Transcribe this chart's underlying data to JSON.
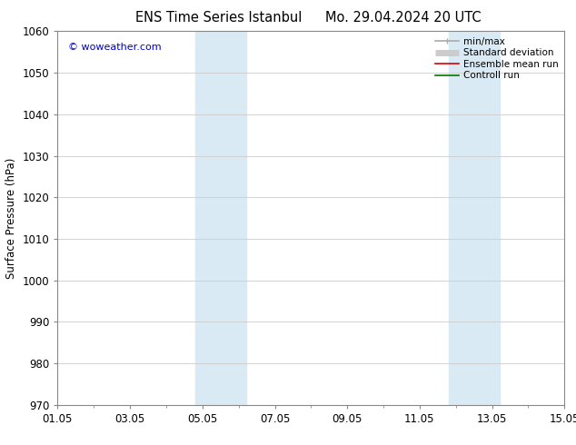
{
  "title_left": "ENS Time Series Istanbul",
  "title_right": "Mo. 29.04.2024 20 UTC",
  "ylabel": "Surface Pressure (hPa)",
  "ylim": [
    970,
    1060
  ],
  "yticks": [
    970,
    980,
    990,
    1000,
    1010,
    1020,
    1030,
    1040,
    1050,
    1060
  ],
  "xlim": [
    0,
    14
  ],
  "xtick_labels": [
    "01.05",
    "03.05",
    "05.05",
    "07.05",
    "09.05",
    "11.05",
    "13.05",
    "15.05"
  ],
  "xtick_positions": [
    0,
    2,
    4,
    6,
    8,
    10,
    12,
    14
  ],
  "shaded_bands": [
    {
      "x_start": 3.8,
      "x_end": 5.2
    },
    {
      "x_start": 10.8,
      "x_end": 12.2
    }
  ],
  "shaded_color": "#daeaf5",
  "background_color": "#ffffff",
  "watermark_text": "© woweather.com",
  "watermark_color": "#0000cc",
  "legend_entries": [
    {
      "label": "min/max",
      "color": "#aaaaaa",
      "lw": 1.2
    },
    {
      "label": "Standard deviation",
      "color": "#cccccc",
      "lw": 5
    },
    {
      "label": "Ensemble mean run",
      "color": "#dd0000",
      "lw": 1.2
    },
    {
      "label": "Controll run",
      "color": "#007700",
      "lw": 1.2
    }
  ],
  "grid_color": "#cccccc",
  "title_fontsize": 10.5,
  "tick_fontsize": 8.5,
  "ylabel_fontsize": 8.5,
  "legend_fontsize": 7.5
}
